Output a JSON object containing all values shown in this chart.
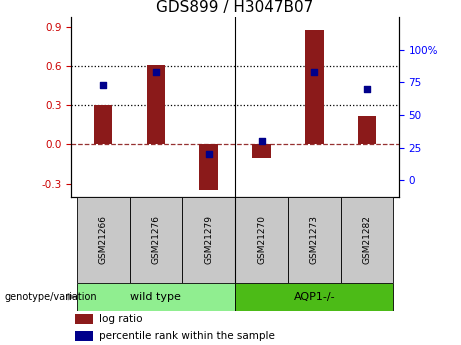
{
  "title": "GDS899 / H3047B07",
  "samples": [
    "GSM21266",
    "GSM21276",
    "GSM21279",
    "GSM21270",
    "GSM21273",
    "GSM21282"
  ],
  "log_ratio": [
    0.3,
    0.61,
    -0.35,
    -0.1,
    0.88,
    0.22
  ],
  "percentile_rank": [
    73,
    83,
    20,
    30,
    83,
    70
  ],
  "bar_color": "#8B1A1A",
  "dot_color": "#00008B",
  "ylim_left": [
    -0.4,
    0.975
  ],
  "ylim_right": [
    -12.5,
    125
  ],
  "yticks_left": [
    -0.3,
    0.0,
    0.3,
    0.6,
    0.9
  ],
  "yticks_right": [
    0,
    25,
    50,
    75,
    100
  ],
  "hlines": [
    0.3,
    0.6
  ],
  "zero_line": 0.0,
  "group_label": "genotype/variation",
  "group_wt": "wild type",
  "group_aqp": "AQP1-/-",
  "group_color_wt": "#90EE90",
  "group_color_aqp": "#4CBB17",
  "sample_box_color": "#C8C8C8",
  "legend_log_ratio": "log ratio",
  "legend_percentile": "percentile rank within the sample",
  "bar_width": 0.35,
  "title_fontsize": 11
}
